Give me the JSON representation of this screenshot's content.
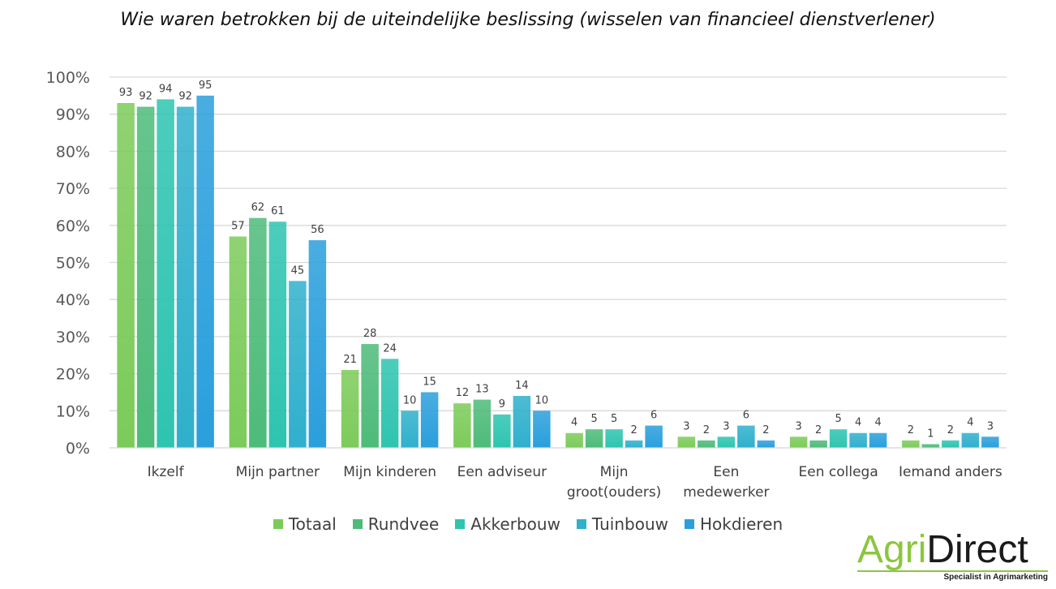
{
  "title": "Wie waren betrokken bij de uiteindelijke beslissing (wisselen van financieel dienstverlener)",
  "chart_data": {
    "type": "bar",
    "title": "Wie waren betrokken bij de uiteindelijke beslissing (wisselen van financieel dienstverlener)",
    "categories": [
      [
        "Ikzelf"
      ],
      [
        "Mijn partner"
      ],
      [
        "Mijn kinderen"
      ],
      [
        "Een adviseur"
      ],
      [
        "Mijn",
        "groot(ouders)"
      ],
      [
        "Een",
        "medewerker"
      ],
      [
        "Een collega"
      ],
      [
        "Iemand anders"
      ]
    ],
    "series": [
      {
        "name": "Totaal",
        "color": "#7ccb5a",
        "values": [
          93,
          57,
          21,
          12,
          4,
          3,
          3,
          2
        ]
      },
      {
        "name": "Rundvee",
        "color": "#4dbb7a",
        "values": [
          92,
          62,
          28,
          13,
          5,
          2,
          2,
          1
        ]
      },
      {
        "name": "Akkerbouw",
        "color": "#2ec4b0",
        "values": [
          94,
          61,
          24,
          9,
          5,
          3,
          5,
          2
        ]
      },
      {
        "name": "Tuinbouw",
        "color": "#2fb0cc",
        "values": [
          92,
          45,
          10,
          14,
          2,
          6,
          4,
          4
        ]
      },
      {
        "name": "Hokdieren",
        "color": "#2a9fdc",
        "values": [
          95,
          56,
          15,
          10,
          6,
          2,
          4,
          3
        ]
      }
    ],
    "yticks": [
      "0%",
      "10%",
      "20%",
      "30%",
      "40%",
      "50%",
      "60%",
      "70%",
      "80%",
      "90%",
      "100%"
    ],
    "ylim": [
      0,
      100
    ],
    "grid": true,
    "legend": "bottom"
  },
  "logo": {
    "agri": "Agri",
    "direct": "Direct",
    "tagline": "Specialist in Agrimarketing"
  }
}
